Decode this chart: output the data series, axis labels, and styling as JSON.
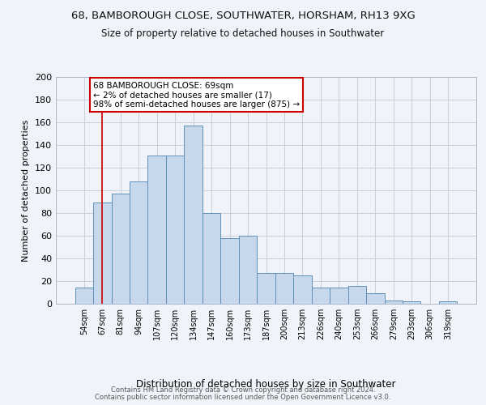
{
  "title1": "68, BAMBOROUGH CLOSE, SOUTHWATER, HORSHAM, RH13 9XG",
  "title2": "Size of property relative to detached houses in Southwater",
  "xlabel": "Distribution of detached houses by size in Southwater",
  "ylabel": "Number of detached properties",
  "categories": [
    "54sqm",
    "67sqm",
    "81sqm",
    "94sqm",
    "107sqm",
    "120sqm",
    "134sqm",
    "147sqm",
    "160sqm",
    "173sqm",
    "187sqm",
    "200sqm",
    "213sqm",
    "226sqm",
    "240sqm",
    "253sqm",
    "266sqm",
    "279sqm",
    "293sqm",
    "306sqm",
    "319sqm"
  ],
  "values": [
    14,
    89,
    97,
    108,
    131,
    131,
    157,
    80,
    58,
    60,
    27,
    27,
    25,
    14,
    14,
    16,
    9,
    3,
    2,
    0,
    2
  ],
  "bar_color": "#c8d8ec",
  "bar_edge_color": "#6090b8",
  "vline_x": 1.0,
  "vline_color": "#cc0000",
  "annotation_text": "68 BAMBOROUGH CLOSE: 69sqm\n← 2% of detached houses are smaller (17)\n98% of semi-detached houses are larger (875) →",
  "annotation_box_facecolor": "#ffffff",
  "annotation_box_edgecolor": "#cc0000",
  "footer1": "Contains HM Land Registry data © Crown copyright and database right 2024.",
  "footer2": "Contains public sector information licensed under the Open Government Licence v3.0.",
  "ylim": [
    0,
    200
  ],
  "yticks": [
    0,
    20,
    40,
    60,
    80,
    100,
    120,
    140,
    160,
    180,
    200
  ],
  "grid_color": "#c8d0dc",
  "bg_color": "#f0f4fa"
}
